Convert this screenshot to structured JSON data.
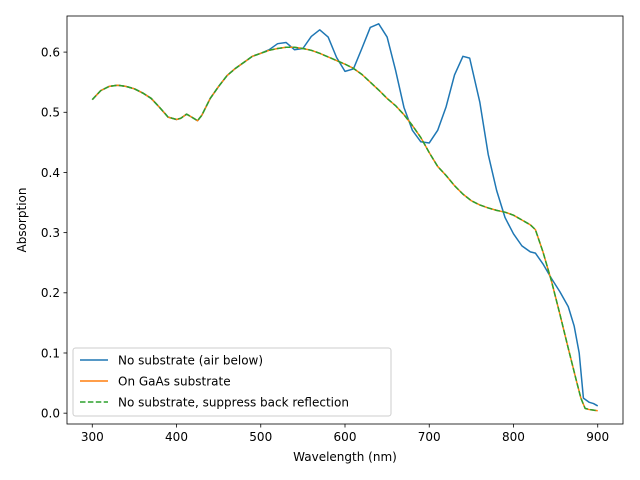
{
  "chart_data": {
    "type": "line",
    "title": "",
    "xlabel": "Wavelength (nm)",
    "ylabel": "Absorption",
    "xlim": [
      270,
      930
    ],
    "ylim": [
      -0.018,
      0.66
    ],
    "xticks": [
      300,
      400,
      500,
      600,
      700,
      800,
      900
    ],
    "yticks": [
      0.0,
      0.1,
      0.2,
      0.3,
      0.4,
      0.5,
      0.6
    ],
    "ytick_labels": [
      "0.0",
      "0.1",
      "0.2",
      "0.3",
      "0.4",
      "0.5",
      "0.6"
    ],
    "grid": false,
    "legend_position": "lower-left",
    "series": [
      {
        "name": "No substrate (air below)",
        "color": "#1f77b4",
        "dash": "solid",
        "points": [
          [
            300,
            0.521
          ],
          [
            310,
            0.536
          ],
          [
            320,
            0.543
          ],
          [
            330,
            0.545
          ],
          [
            340,
            0.543
          ],
          [
            350,
            0.539
          ],
          [
            360,
            0.532
          ],
          [
            370,
            0.523
          ],
          [
            380,
            0.508
          ],
          [
            390,
            0.492
          ],
          [
            400,
            0.488
          ],
          [
            405,
            0.49
          ],
          [
            412,
            0.497
          ],
          [
            418,
            0.492
          ],
          [
            425,
            0.486
          ],
          [
            430,
            0.495
          ],
          [
            440,
            0.523
          ],
          [
            450,
            0.543
          ],
          [
            460,
            0.561
          ],
          [
            470,
            0.573
          ],
          [
            480,
            0.583
          ],
          [
            490,
            0.593
          ],
          [
            500,
            0.598
          ],
          [
            510,
            0.604
          ],
          [
            520,
            0.614
          ],
          [
            530,
            0.616
          ],
          [
            540,
            0.604
          ],
          [
            550,
            0.606
          ],
          [
            560,
            0.626
          ],
          [
            570,
            0.637
          ],
          [
            580,
            0.625
          ],
          [
            590,
            0.591
          ],
          [
            600,
            0.568
          ],
          [
            610,
            0.572
          ],
          [
            620,
            0.606
          ],
          [
            630,
            0.641
          ],
          [
            640,
            0.647
          ],
          [
            650,
            0.625
          ],
          [
            660,
            0.57
          ],
          [
            670,
            0.508
          ],
          [
            680,
            0.47
          ],
          [
            690,
            0.451
          ],
          [
            700,
            0.449
          ],
          [
            710,
            0.47
          ],
          [
            720,
            0.509
          ],
          [
            730,
            0.562
          ],
          [
            740,
            0.593
          ],
          [
            748,
            0.59
          ],
          [
            760,
            0.517
          ],
          [
            770,
            0.43
          ],
          [
            780,
            0.37
          ],
          [
            790,
            0.325
          ],
          [
            800,
            0.298
          ],
          [
            810,
            0.278
          ],
          [
            820,
            0.268
          ],
          [
            826,
            0.266
          ],
          [
            835,
            0.248
          ],
          [
            845,
            0.224
          ],
          [
            855,
            0.202
          ],
          [
            865,
            0.177
          ],
          [
            872,
            0.145
          ],
          [
            878,
            0.1
          ],
          [
            883,
            0.025
          ],
          [
            890,
            0.018
          ],
          [
            895,
            0.016
          ],
          [
            900,
            0.012
          ]
        ]
      },
      {
        "name": "On GaAs substrate",
        "color": "#ff7f0e",
        "dash": "solid",
        "points": [
          [
            300,
            0.521
          ],
          [
            310,
            0.536
          ],
          [
            320,
            0.543
          ],
          [
            330,
            0.545
          ],
          [
            340,
            0.543
          ],
          [
            350,
            0.539
          ],
          [
            360,
            0.532
          ],
          [
            370,
            0.523
          ],
          [
            380,
            0.508
          ],
          [
            390,
            0.492
          ],
          [
            400,
            0.488
          ],
          [
            405,
            0.49
          ],
          [
            412,
            0.497
          ],
          [
            418,
            0.492
          ],
          [
            425,
            0.486
          ],
          [
            430,
            0.495
          ],
          [
            440,
            0.523
          ],
          [
            450,
            0.543
          ],
          [
            460,
            0.561
          ],
          [
            470,
            0.573
          ],
          [
            480,
            0.583
          ],
          [
            490,
            0.593
          ],
          [
            500,
            0.598
          ],
          [
            510,
            0.603
          ],
          [
            520,
            0.606
          ],
          [
            530,
            0.608
          ],
          [
            540,
            0.608
          ],
          [
            550,
            0.606
          ],
          [
            560,
            0.603
          ],
          [
            570,
            0.598
          ],
          [
            580,
            0.592
          ],
          [
            590,
            0.586
          ],
          [
            600,
            0.58
          ],
          [
            610,
            0.573
          ],
          [
            620,
            0.563
          ],
          [
            630,
            0.55
          ],
          [
            640,
            0.537
          ],
          [
            650,
            0.523
          ],
          [
            660,
            0.511
          ],
          [
            670,
            0.496
          ],
          [
            680,
            0.478
          ],
          [
            690,
            0.458
          ],
          [
            700,
            0.433
          ],
          [
            710,
            0.41
          ],
          [
            720,
            0.395
          ],
          [
            730,
            0.378
          ],
          [
            740,
            0.364
          ],
          [
            750,
            0.353
          ],
          [
            760,
            0.346
          ],
          [
            770,
            0.341
          ],
          [
            780,
            0.337
          ],
          [
            790,
            0.334
          ],
          [
            800,
            0.329
          ],
          [
            810,
            0.321
          ],
          [
            820,
            0.313
          ],
          [
            826,
            0.305
          ],
          [
            835,
            0.268
          ],
          [
            845,
            0.22
          ],
          [
            855,
            0.165
          ],
          [
            865,
            0.108
          ],
          [
            875,
            0.052
          ],
          [
            880,
            0.025
          ],
          [
            885,
            0.008
          ],
          [
            890,
            0.006
          ],
          [
            895,
            0.005
          ],
          [
            900,
            0.004
          ]
        ]
      },
      {
        "name": "No substrate, suppress back reflection",
        "color": "#2ca02c",
        "dash": "dashed",
        "points": [
          [
            300,
            0.521
          ],
          [
            310,
            0.536
          ],
          [
            320,
            0.543
          ],
          [
            330,
            0.545
          ],
          [
            340,
            0.543
          ],
          [
            350,
            0.539
          ],
          [
            360,
            0.532
          ],
          [
            370,
            0.523
          ],
          [
            380,
            0.508
          ],
          [
            390,
            0.492
          ],
          [
            400,
            0.488
          ],
          [
            405,
            0.49
          ],
          [
            412,
            0.497
          ],
          [
            418,
            0.492
          ],
          [
            425,
            0.486
          ],
          [
            430,
            0.495
          ],
          [
            440,
            0.523
          ],
          [
            450,
            0.543
          ],
          [
            460,
            0.561
          ],
          [
            470,
            0.573
          ],
          [
            480,
            0.583
          ],
          [
            490,
            0.593
          ],
          [
            500,
            0.598
          ],
          [
            510,
            0.603
          ],
          [
            520,
            0.606
          ],
          [
            530,
            0.608
          ],
          [
            540,
            0.608
          ],
          [
            550,
            0.606
          ],
          [
            560,
            0.603
          ],
          [
            570,
            0.598
          ],
          [
            580,
            0.592
          ],
          [
            590,
            0.586
          ],
          [
            600,
            0.58
          ],
          [
            610,
            0.573
          ],
          [
            620,
            0.563
          ],
          [
            630,
            0.55
          ],
          [
            640,
            0.537
          ],
          [
            650,
            0.523
          ],
          [
            660,
            0.511
          ],
          [
            670,
            0.496
          ],
          [
            680,
            0.478
          ],
          [
            690,
            0.458
          ],
          [
            700,
            0.433
          ],
          [
            710,
            0.41
          ],
          [
            720,
            0.395
          ],
          [
            730,
            0.378
          ],
          [
            740,
            0.364
          ],
          [
            750,
            0.353
          ],
          [
            760,
            0.346
          ],
          [
            770,
            0.341
          ],
          [
            780,
            0.337
          ],
          [
            790,
            0.334
          ],
          [
            800,
            0.329
          ],
          [
            810,
            0.321
          ],
          [
            820,
            0.313
          ],
          [
            826,
            0.305
          ],
          [
            835,
            0.268
          ],
          [
            845,
            0.22
          ],
          [
            855,
            0.165
          ],
          [
            865,
            0.108
          ],
          [
            875,
            0.052
          ],
          [
            880,
            0.025
          ],
          [
            885,
            0.008
          ],
          [
            890,
            0.006
          ],
          [
            895,
            0.005
          ],
          [
            900,
            0.004
          ]
        ]
      }
    ]
  }
}
